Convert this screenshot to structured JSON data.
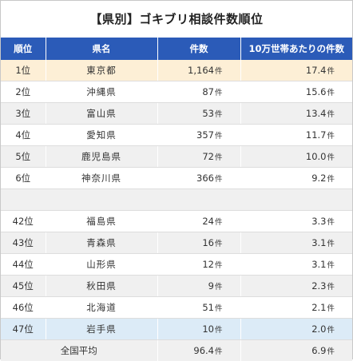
{
  "title": "【県別】ゴキブリ相談件数順位",
  "headers": {
    "rank": "順位",
    "prefecture": "県名",
    "count": "件数",
    "per100k": "10万世帯あたりの件数"
  },
  "unit": "件",
  "top_rows": [
    {
      "rank": "1位",
      "prefecture": "東京都",
      "count": "1,164",
      "per100k": "17.4"
    },
    {
      "rank": "2位",
      "prefecture": "沖縄県",
      "count": "87",
      "per100k": "15.6"
    },
    {
      "rank": "3位",
      "prefecture": "富山県",
      "count": "53",
      "per100k": "13.4"
    },
    {
      "rank": "4位",
      "prefecture": "愛知県",
      "count": "357",
      "per100k": "11.7"
    },
    {
      "rank": "5位",
      "prefecture": "鹿児島県",
      "count": "72",
      "per100k": "10.0"
    },
    {
      "rank": "6位",
      "prefecture": "神奈川県",
      "count": "366",
      "per100k": "9.2"
    }
  ],
  "bottom_rows": [
    {
      "rank": "42位",
      "prefecture": "福島県",
      "count": "24",
      "per100k": "3.3"
    },
    {
      "rank": "43位",
      "prefecture": "青森県",
      "count": "16",
      "per100k": "3.1"
    },
    {
      "rank": "44位",
      "prefecture": "山形県",
      "count": "12",
      "per100k": "3.1"
    },
    {
      "rank": "45位",
      "prefecture": "秋田県",
      "count": "9",
      "per100k": "2.3"
    },
    {
      "rank": "46位",
      "prefecture": "北海道",
      "count": "51",
      "per100k": "2.1"
    },
    {
      "rank": "47位",
      "prefecture": "岩手県",
      "count": "10",
      "per100k": "2.0"
    }
  ],
  "average": {
    "label": "全国平均",
    "count": "96.4",
    "per100k": "6.9"
  },
  "colors": {
    "header_bg": "#2b5bb8",
    "top_highlight": "#fdefd6",
    "bottom_highlight": "#dcebf7",
    "stripe": "#f0f0f0"
  }
}
